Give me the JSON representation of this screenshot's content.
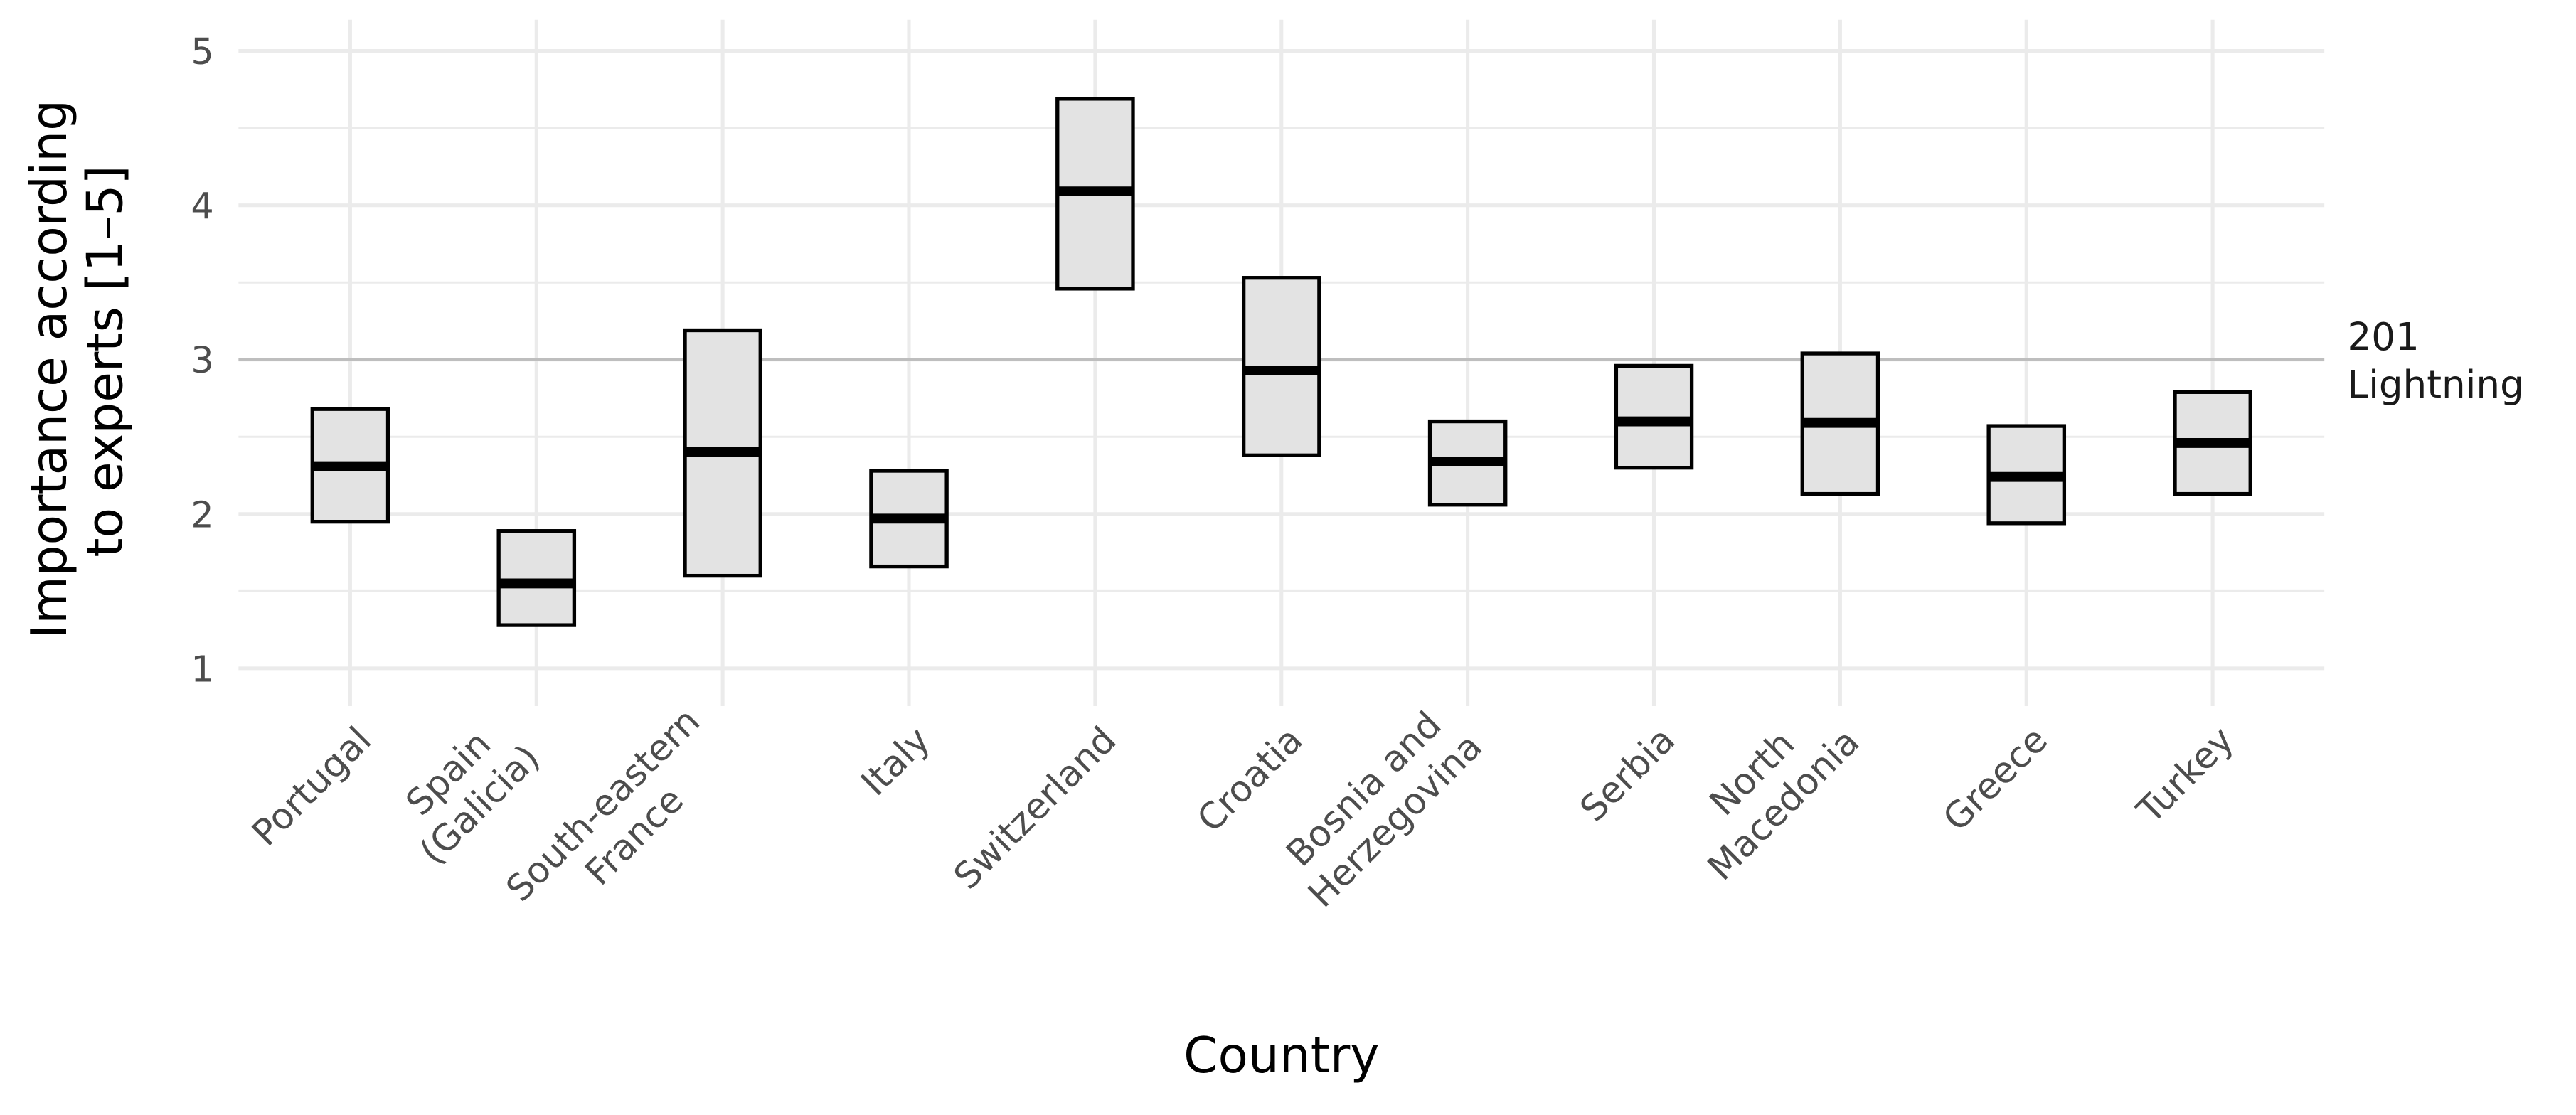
{
  "chart_data": {
    "type": "crossbar",
    "xlabel": "Country",
    "ylabel": [
      "Importance according",
      "to experts [1–5]"
    ],
    "ylim": [
      1,
      5
    ],
    "yticks": [
      1,
      2,
      3,
      4,
      5
    ],
    "grid": true,
    "reference_line": {
      "y": 3,
      "label": [
        "201",
        "Lightning"
      ],
      "color": "#bebebe"
    },
    "fill_color": "#e3e3e3",
    "categories": [
      [
        "Portugal"
      ],
      [
        "Spain",
        "(Galicia)"
      ],
      [
        "South-eastern",
        "France"
      ],
      [
        "Italy"
      ],
      [
        "Switzerland"
      ],
      [
        "Croatia"
      ],
      [
        "Bosnia and",
        "Herzegovina"
      ],
      [
        "Serbia"
      ],
      [
        "North",
        "Macedonia"
      ],
      [
        "Greece"
      ],
      [
        "Turkey"
      ]
    ],
    "lower": [
      1.95,
      1.28,
      1.6,
      1.66,
      3.46,
      2.38,
      2.06,
      2.3,
      2.13,
      1.94,
      2.13
    ],
    "median": [
      2.31,
      1.55,
      2.4,
      1.97,
      4.09,
      2.93,
      2.34,
      2.6,
      2.59,
      2.24,
      2.46
    ],
    "upper": [
      2.68,
      1.89,
      3.19,
      2.28,
      4.69,
      3.53,
      2.6,
      2.96,
      3.04,
      2.57,
      2.79
    ]
  }
}
